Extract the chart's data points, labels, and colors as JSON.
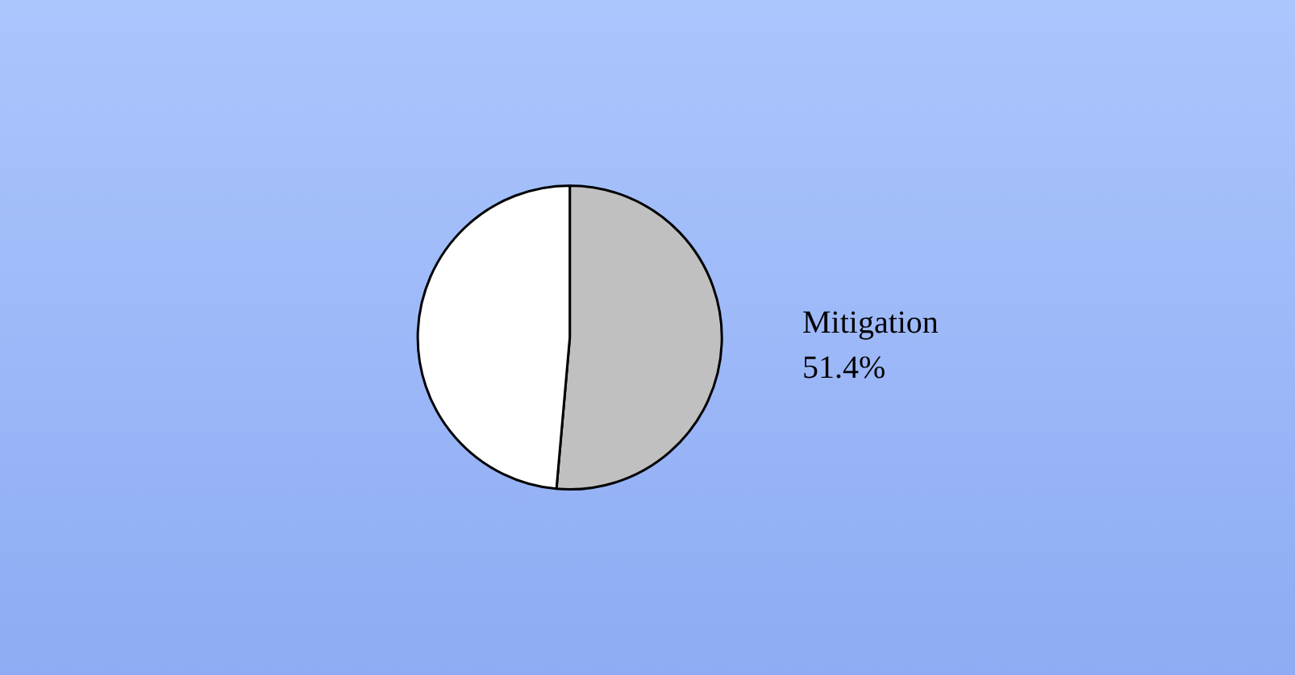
{
  "chart_data": {
    "type": "pie",
    "categories": [
      "Mitigation",
      null
    ],
    "values": [
      51.4,
      48.6
    ],
    "colors": [
      "#c0c0c0",
      "#ffffff"
    ],
    "value_labels": [
      "51.4%",
      null
    ],
    "legend": false
  }
}
